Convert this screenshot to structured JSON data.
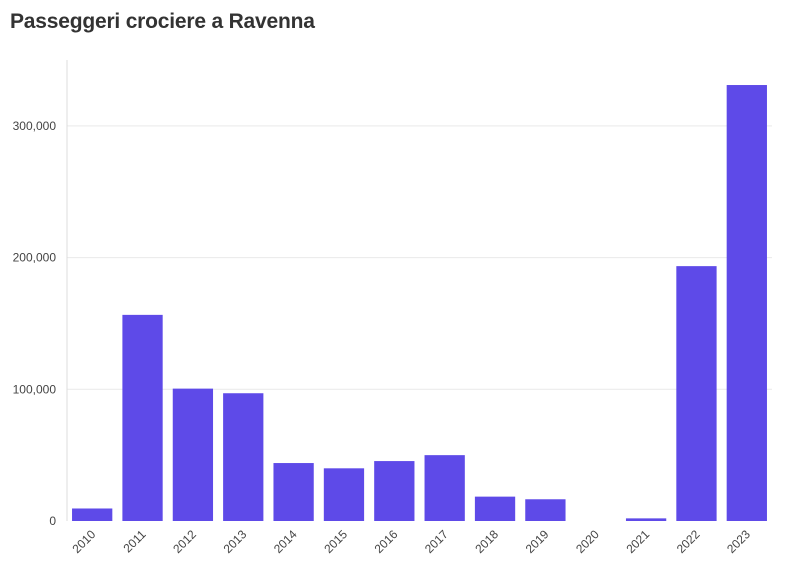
{
  "chart_data": {
    "type": "bar",
    "title": "Passeggeri crociere a Ravenna",
    "categories": [
      "2010",
      "2011",
      "2012",
      "2013",
      "2014",
      "2015",
      "2016",
      "2017",
      "2018",
      "2019",
      "2020",
      "2021",
      "2022",
      "2023"
    ],
    "values": [
      9500,
      156500,
      100500,
      97000,
      44000,
      40000,
      45500,
      50000,
      18500,
      16500,
      0,
      2000,
      193500,
      331000
    ],
    "yticks": [
      0,
      100000,
      200000,
      300000
    ],
    "ytick_labels": [
      "0",
      "100,000",
      "200,000",
      "300,000"
    ],
    "ylim": [
      0,
      350000
    ],
    "bar_color": "#5e4ae8",
    "grid": true,
    "legend": "none"
  }
}
